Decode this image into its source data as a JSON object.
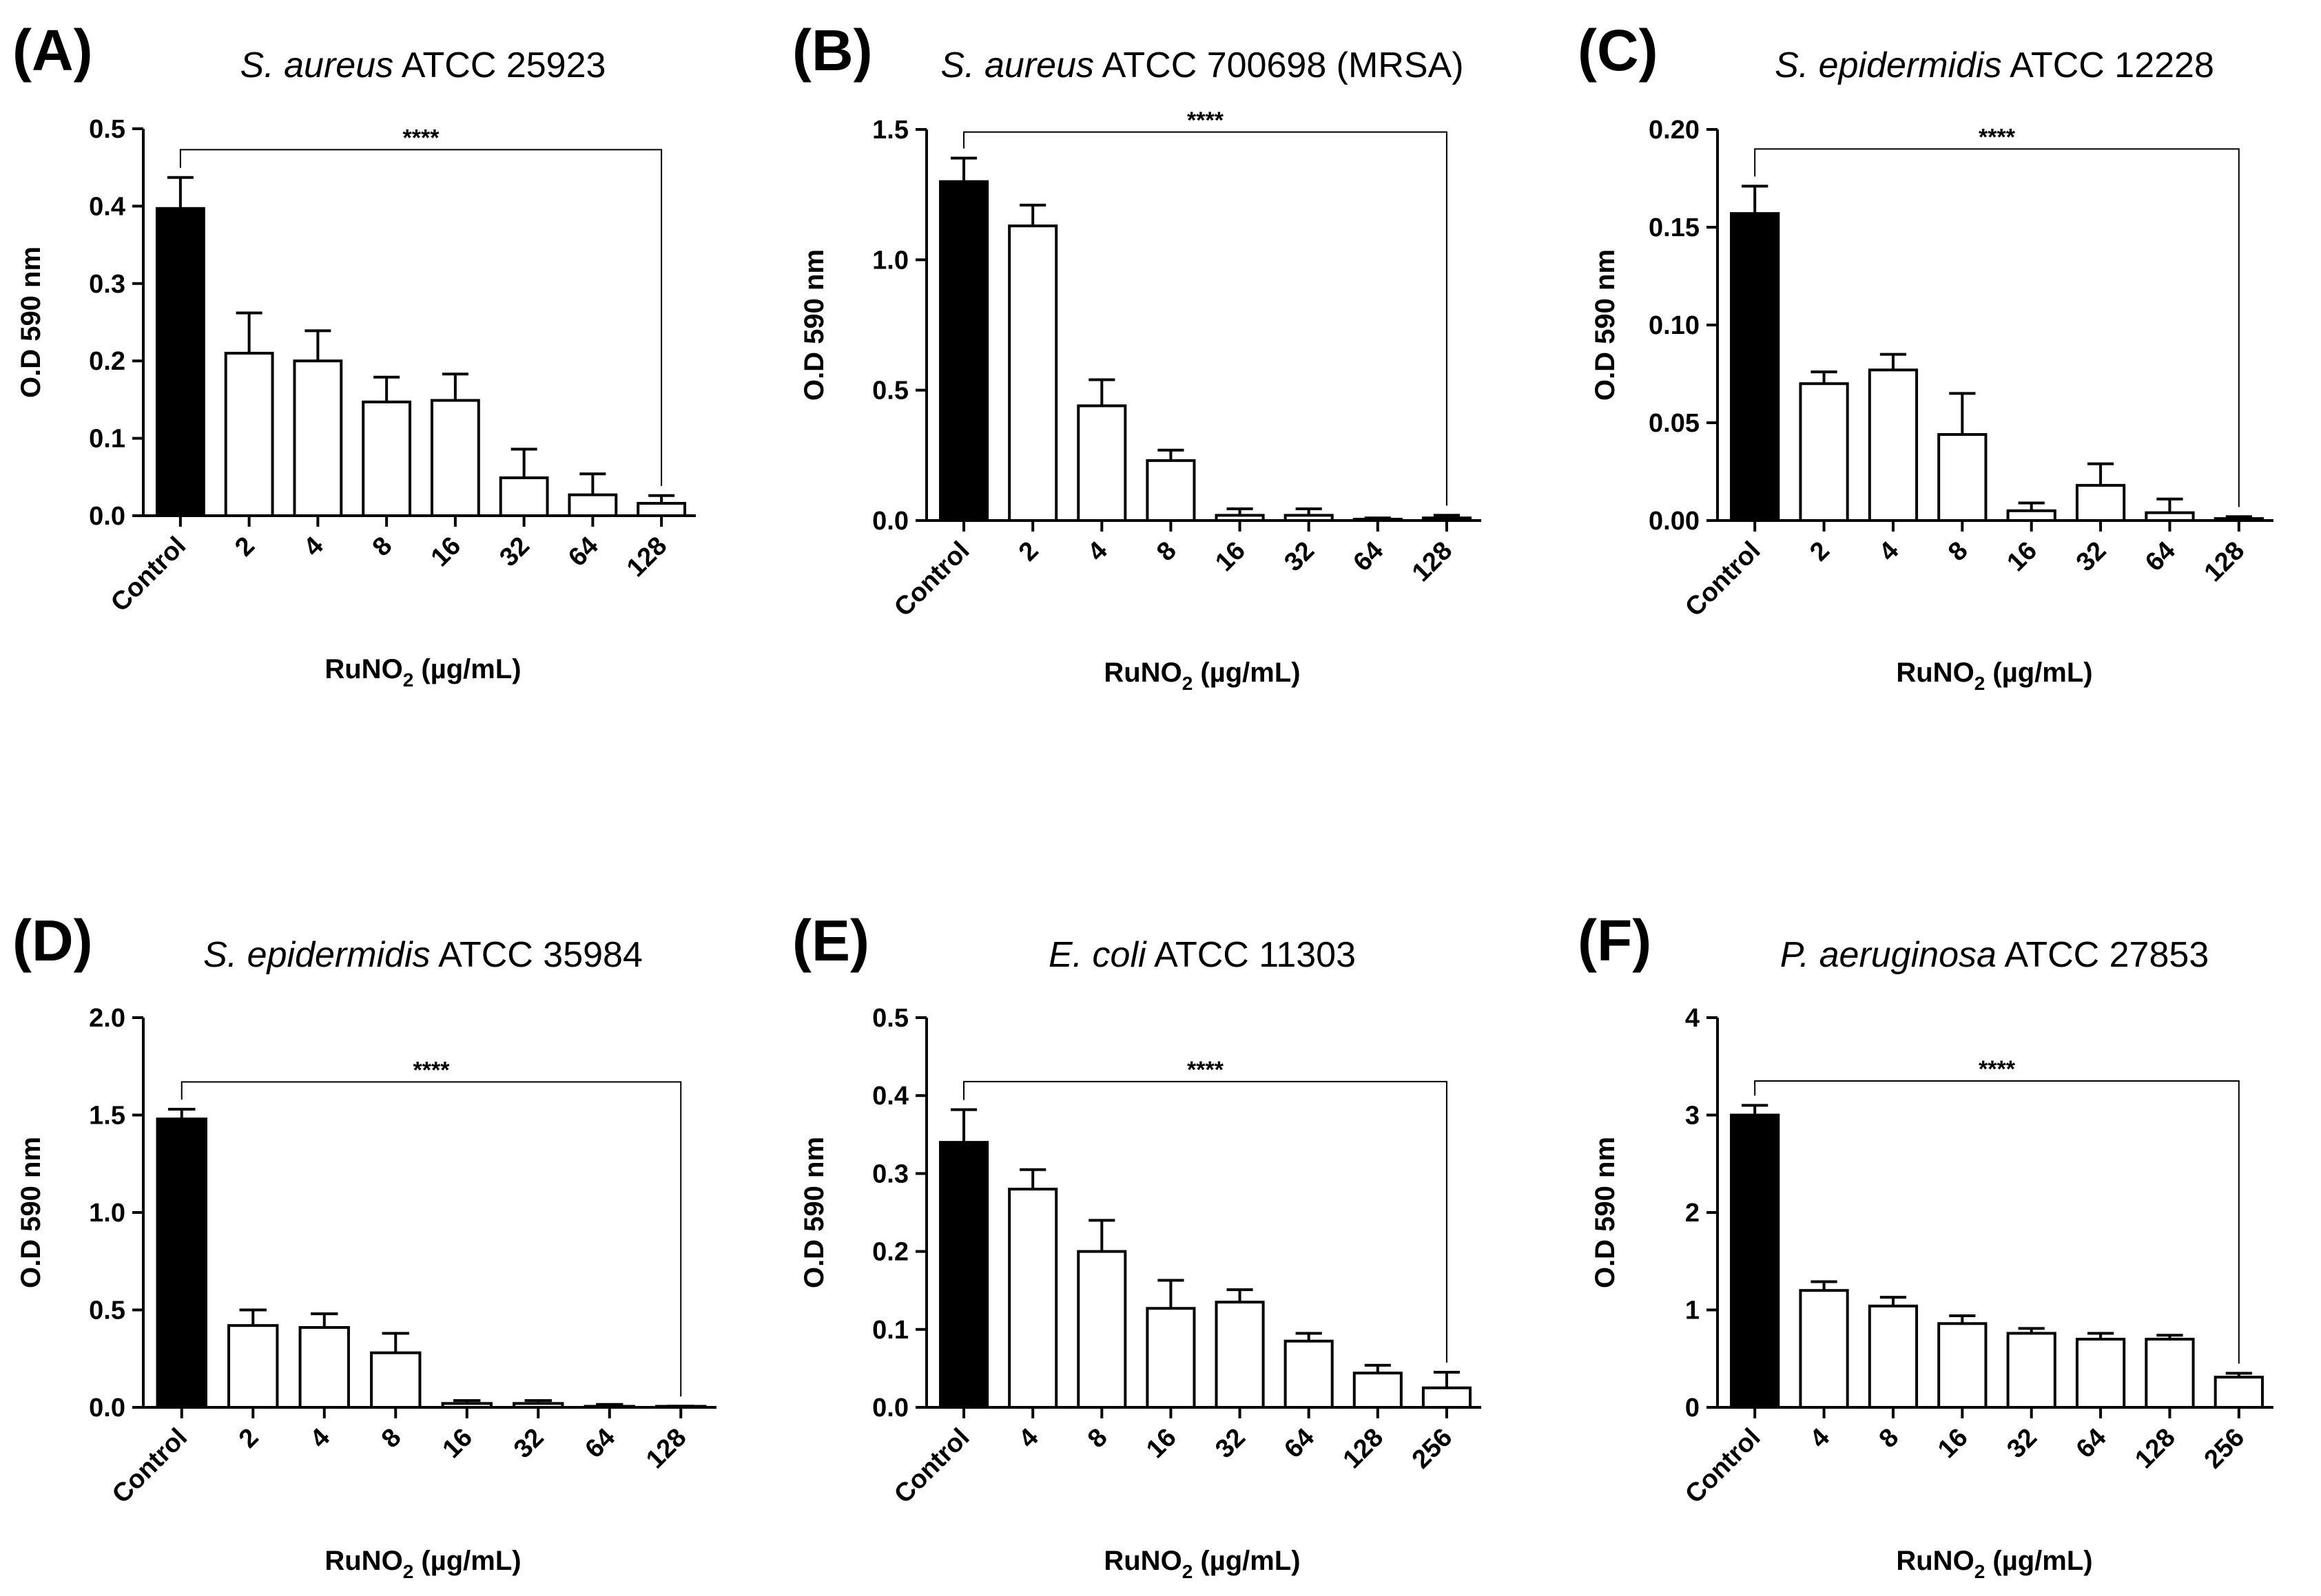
{
  "figure": {
    "ylabel": "O.D 590 nm",
    "xlabel_main": "RuNO",
    "xlabel_sub": "2",
    "xlabel_unit": " (µg/mL)"
  },
  "chart_data": [
    {
      "type": "bar",
      "panel": "(A)",
      "species": "S. aureus",
      "strain": "ATCC 25923",
      "categories": [
        "Control",
        "2",
        "4",
        "8",
        "16",
        "32",
        "64",
        "128"
      ],
      "values": [
        0.397,
        0.21,
        0.2,
        0.147,
        0.149,
        0.049,
        0.027,
        0.016
      ],
      "errors": [
        0.04,
        0.052,
        0.039,
        0.032,
        0.034,
        0.037,
        0.027,
        0.01
      ],
      "ylim": [
        0,
        0.5
      ],
      "yticks": [
        "0.0",
        "0.1",
        "0.2",
        "0.3",
        "0.4",
        "0.5"
      ],
      "ylabel": "O.D 590 nm",
      "xlabel": "RuNO2 (µg/mL)",
      "significance": {
        "label": "****",
        "from": "Control",
        "to": "128",
        "y": 0.473
      }
    },
    {
      "type": "bar",
      "panel": "(B)",
      "species": "S. aureus",
      "strain": "ATCC 700698 (MRSA)",
      "categories": [
        "Control",
        "2",
        "4",
        "8",
        "16",
        "32",
        "64",
        "128"
      ],
      "values": [
        1.3,
        1.13,
        0.44,
        0.23,
        0.02,
        0.02,
        0.005,
        0.01
      ],
      "errors": [
        0.09,
        0.08,
        0.1,
        0.04,
        0.025,
        0.025,
        0.005,
        0.01
      ],
      "ylim": [
        0,
        1.5
      ],
      "yticks": [
        "0.0",
        "0.5",
        "1.0",
        "1.5"
      ],
      "ylabel": "O.D 590 nm",
      "xlabel": "RuNO2 (µg/mL)",
      "significance": {
        "label": "****",
        "from": "Control",
        "to": "128",
        "y": 1.49
      }
    },
    {
      "type": "bar",
      "panel": "(C)",
      "species": "S. epidermidis",
      "strain": "ATCC 12228",
      "categories": [
        "Control",
        "2",
        "4",
        "8",
        "16",
        "32",
        "64",
        "128"
      ],
      "values": [
        0.157,
        0.07,
        0.077,
        0.044,
        0.005,
        0.018,
        0.004,
        0.001
      ],
      "errors": [
        0.014,
        0.006,
        0.008,
        0.021,
        0.004,
        0.011,
        0.007,
        0.001
      ],
      "ylim": [
        0,
        0.2
      ],
      "yticks": [
        "0.00",
        "0.05",
        "0.10",
        "0.15",
        "0.20"
      ],
      "ylabel": "O.D 590 nm",
      "xlabel": "RuNO2 (µg/mL)",
      "significance": {
        "label": "****",
        "from": "Control",
        "to": "128",
        "y": 0.19
      }
    },
    {
      "type": "bar",
      "panel": "(D)",
      "species": "S. epidermidis",
      "strain": "ATCC 35984",
      "categories": [
        "Control",
        "2",
        "4",
        "8",
        "16",
        "32",
        "64",
        "128"
      ],
      "values": [
        1.48,
        0.42,
        0.41,
        0.28,
        0.02,
        0.02,
        0.005,
        0.003
      ],
      "errors": [
        0.05,
        0.08,
        0.07,
        0.1,
        0.015,
        0.015,
        0.01,
        0.003
      ],
      "ylim": [
        0,
        2.0
      ],
      "yticks": [
        "0.0",
        "0.5",
        "1.0",
        "1.5",
        "2.0"
      ],
      "ylabel": "O.D 590 nm",
      "xlabel": "RuNO2 (µg/mL)",
      "significance": {
        "label": "****",
        "from": "Control",
        "to": "128",
        "y": 1.67
      }
    },
    {
      "type": "bar",
      "panel": "(E)",
      "species": "E. coli",
      "strain": "ATCC 11303",
      "categories": [
        "Control",
        "4",
        "8",
        "16",
        "32",
        "64",
        "128",
        "256"
      ],
      "values": [
        0.34,
        0.28,
        0.2,
        0.127,
        0.135,
        0.085,
        0.044,
        0.025
      ],
      "errors": [
        0.042,
        0.025,
        0.04,
        0.036,
        0.016,
        0.01,
        0.01,
        0.02
      ],
      "ylim": [
        0,
        0.5
      ],
      "yticks": [
        "0.0",
        "0.1",
        "0.2",
        "0.3",
        "0.4",
        "0.5"
      ],
      "ylabel": "O.D 590 nm",
      "xlabel": "RuNO2 (µg/mL)",
      "significance": {
        "label": "****",
        "from": "Control",
        "to": "256",
        "y": 0.418
      }
    },
    {
      "type": "bar",
      "panel": "(F)",
      "species": "P. aeruginosa",
      "strain": "ATCC 27853",
      "categories": [
        "Control",
        "4",
        "8",
        "16",
        "32",
        "64",
        "128",
        "256"
      ],
      "values": [
        3.0,
        1.2,
        1.04,
        0.86,
        0.76,
        0.7,
        0.7,
        0.31
      ],
      "errors": [
        0.1,
        0.09,
        0.09,
        0.08,
        0.05,
        0.06,
        0.04,
        0.04
      ],
      "ylim": [
        0,
        4
      ],
      "yticks": [
        "0",
        "1",
        "2",
        "3",
        "4"
      ],
      "ylabel": "O.D 590 nm",
      "xlabel": "RuNO2 (µg/mL)",
      "significance": {
        "label": "****",
        "from": "Control",
        "to": "256",
        "y": 3.35
      }
    }
  ]
}
